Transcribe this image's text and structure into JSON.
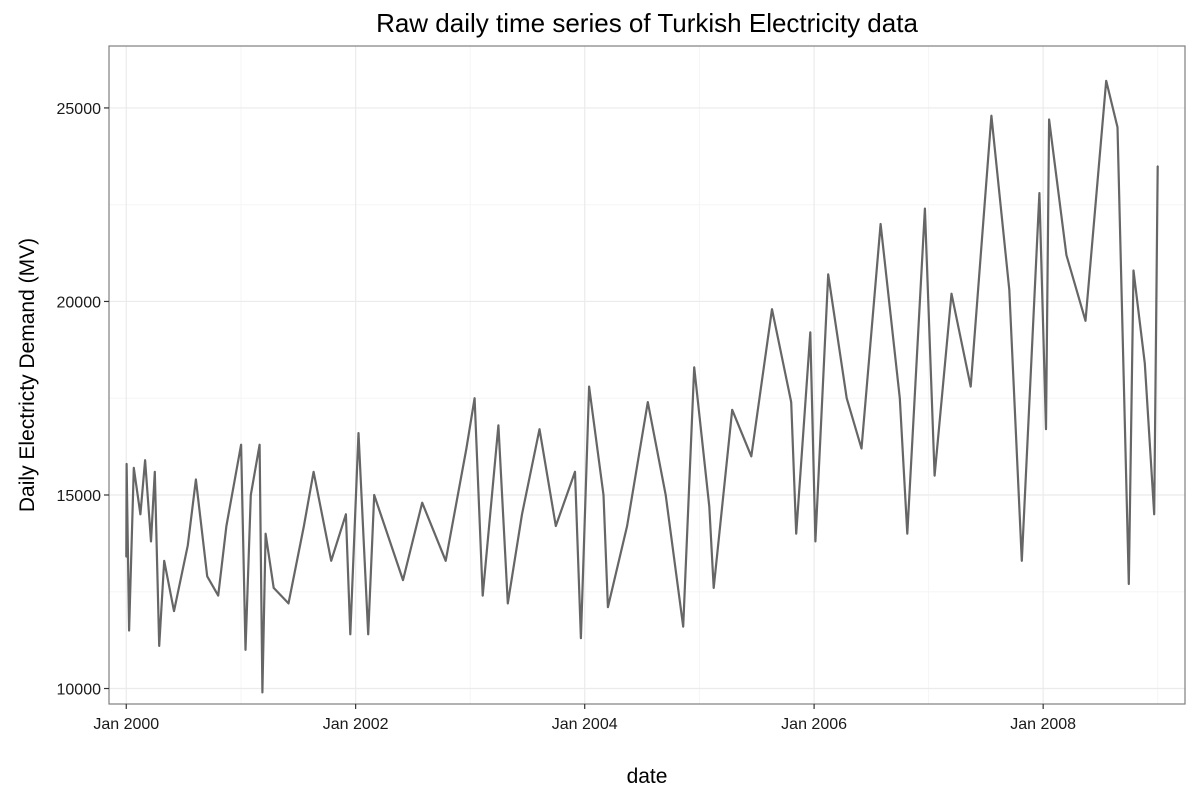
{
  "chart_data": {
    "type": "line",
    "title": "Raw daily time series of Turkish Electricity data",
    "xlabel": "date",
    "ylabel": "Daily Electricty Demand (MV)",
    "xlim": [
      "1999-11-07",
      "2009-03-28"
    ],
    "ylim": [
      9600,
      26600
    ],
    "x_ticks": [
      "2000-01-01",
      "2002-01-01",
      "2004-01-01",
      "2006-01-01",
      "2008-01-01"
    ],
    "x_tick_labels": [
      "Jan 2000",
      "Jan 2002",
      "Jan 2004",
      "Jan 2006",
      "Jan 2008"
    ],
    "y_ticks": [
      10000,
      15000,
      20000,
      25000
    ],
    "y_tick_labels": [
      "10000",
      "15000",
      "20000",
      "25000"
    ],
    "grid": true,
    "colors": {
      "line": "#666666",
      "panel_border": "#7f7f7f",
      "grid_major": "#ebebeb",
      "grid_minor": "#f5f5f5"
    },
    "series": [
      {
        "points": [
          {
            "x": "2000-01-01",
            "y": 13400
          },
          {
            "x": "2000-01-02",
            "y": 15800
          },
          {
            "x": "2000-01-10",
            "y": 11500
          },
          {
            "x": "2000-01-25",
            "y": 15700
          },
          {
            "x": "2000-02-15",
            "y": 14500
          },
          {
            "x": "2000-03-01",
            "y": 15900
          },
          {
            "x": "2000-03-20",
            "y": 13800
          },
          {
            "x": "2000-04-01",
            "y": 15600
          },
          {
            "x": "2000-04-15",
            "y": 11100
          },
          {
            "x": "2000-05-01",
            "y": 13300
          },
          {
            "x": "2000-06-01",
            "y": 12000
          },
          {
            "x": "2000-07-15",
            "y": 13700
          },
          {
            "x": "2000-08-10",
            "y": 15400
          },
          {
            "x": "2000-09-15",
            "y": 12900
          },
          {
            "x": "2000-10-20",
            "y": 12400
          },
          {
            "x": "2000-11-15",
            "y": 14200
          },
          {
            "x": "2001-01-01",
            "y": 16300
          },
          {
            "x": "2001-01-15",
            "y": 11000
          },
          {
            "x": "2001-02-01",
            "y": 15000
          },
          {
            "x": "2001-03-01",
            "y": 16300
          },
          {
            "x": "2001-03-10",
            "y": 9900
          },
          {
            "x": "2001-03-20",
            "y": 14000
          },
          {
            "x": "2001-04-15",
            "y": 12600
          },
          {
            "x": "2001-06-01",
            "y": 12200
          },
          {
            "x": "2001-07-20",
            "y": 14200
          },
          {
            "x": "2001-08-20",
            "y": 15600
          },
          {
            "x": "2001-10-15",
            "y": 13300
          },
          {
            "x": "2001-12-01",
            "y": 14500
          },
          {
            "x": "2001-12-15",
            "y": 11400
          },
          {
            "x": "2002-01-10",
            "y": 16600
          },
          {
            "x": "2002-02-10",
            "y": 11400
          },
          {
            "x": "2002-03-01",
            "y": 15000
          },
          {
            "x": "2002-06-01",
            "y": 12800
          },
          {
            "x": "2002-08-01",
            "y": 14800
          },
          {
            "x": "2002-10-15",
            "y": 13300
          },
          {
            "x": "2002-12-20",
            "y": 16200
          },
          {
            "x": "2003-01-15",
            "y": 17500
          },
          {
            "x": "2003-02-10",
            "y": 12400
          },
          {
            "x": "2003-04-01",
            "y": 16800
          },
          {
            "x": "2003-05-01",
            "y": 12200
          },
          {
            "x": "2003-06-15",
            "y": 14500
          },
          {
            "x": "2003-08-10",
            "y": 16700
          },
          {
            "x": "2003-10-01",
            "y": 14200
          },
          {
            "x": "2003-12-01",
            "y": 15600
          },
          {
            "x": "2003-12-20",
            "y": 11300
          },
          {
            "x": "2004-01-15",
            "y": 17800
          },
          {
            "x": "2004-03-01",
            "y": 15000
          },
          {
            "x": "2004-03-15",
            "y": 12100
          },
          {
            "x": "2004-05-15",
            "y": 14200
          },
          {
            "x": "2004-07-20",
            "y": 17400
          },
          {
            "x": "2004-09-15",
            "y": 15000
          },
          {
            "x": "2004-11-10",
            "y": 11600
          },
          {
            "x": "2004-12-15",
            "y": 18300
          },
          {
            "x": "2005-02-01",
            "y": 14700
          },
          {
            "x": "2005-02-15",
            "y": 12600
          },
          {
            "x": "2005-04-15",
            "y": 17200
          },
          {
            "x": "2005-06-15",
            "y": 16000
          },
          {
            "x": "2005-08-20",
            "y": 19800
          },
          {
            "x": "2005-10-20",
            "y": 17400
          },
          {
            "x": "2005-11-05",
            "y": 14000
          },
          {
            "x": "2005-12-20",
            "y": 19200
          },
          {
            "x": "2006-01-05",
            "y": 13800
          },
          {
            "x": "2006-02-15",
            "y": 20700
          },
          {
            "x": "2006-04-15",
            "y": 17500
          },
          {
            "x": "2006-06-01",
            "y": 16200
          },
          {
            "x": "2006-08-01",
            "y": 22000
          },
          {
            "x": "2006-10-01",
            "y": 17500
          },
          {
            "x": "2006-10-25",
            "y": 14000
          },
          {
            "x": "2006-12-20",
            "y": 22400
          },
          {
            "x": "2007-01-20",
            "y": 15500
          },
          {
            "x": "2007-03-15",
            "y": 20200
          },
          {
            "x": "2007-05-15",
            "y": 17800
          },
          {
            "x": "2007-07-20",
            "y": 24800
          },
          {
            "x": "2007-09-15",
            "y": 20300
          },
          {
            "x": "2007-10-25",
            "y": 13300
          },
          {
            "x": "2007-12-20",
            "y": 22800
          },
          {
            "x": "2008-01-10",
            "y": 16700
          },
          {
            "x": "2008-01-20",
            "y": 24700
          },
          {
            "x": "2008-03-15",
            "y": 21200
          },
          {
            "x": "2008-05-15",
            "y": 19500
          },
          {
            "x": "2008-07-20",
            "y": 25700
          },
          {
            "x": "2008-08-25",
            "y": 24500
          },
          {
            "x": "2008-09-30",
            "y": 12700
          },
          {
            "x": "2008-10-15",
            "y": 20800
          },
          {
            "x": "2008-11-20",
            "y": 18400
          },
          {
            "x": "2008-12-20",
            "y": 14500
          },
          {
            "x": "2008-12-31",
            "y": 23500
          }
        ]
      }
    ]
  }
}
